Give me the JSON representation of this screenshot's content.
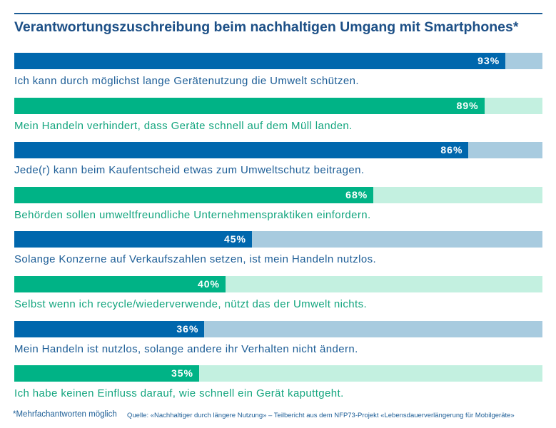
{
  "title": "Verantwortungszuschreibung beim nachhaltigen Umgang mit Smartphones*",
  "footnote": "*Mehrfachantworten möglich",
  "source": "Quelle: «Nachhaltiger durch längere Nutzung» – Teilbericht aus dem NFP73-Projekt «Lebensdauerverlängerung für Mobilgeräte»",
  "colors": {
    "blue": "#0067ad",
    "blue_light": "#a8cbdf",
    "green": "#00b386",
    "green_light": "#c3f0e0",
    "blue_text": "#1c5d96",
    "green_text": "#13a57e"
  },
  "chart_data": {
    "type": "bar",
    "orientation": "horizontal",
    "xlim": [
      0,
      100
    ],
    "unit": "%",
    "categories": [
      "Ich kann durch möglichst lange Gerätenutzung die Umwelt schützen.",
      "Mein Handeln verhindert, dass Geräte schnell auf dem Müll landen.",
      "Jede(r) kann beim Kaufentscheid etwas zum Umweltschutz beitragen.",
      "Behörden sollen umweltfreundliche Unternehmenspraktiken einfordern.",
      "Solange Konzerne auf Verkaufszahlen setzen, ist mein Handeln nutzlos.",
      "Selbst wenn ich recycle/wiederverwende, nützt das der Umwelt nichts.",
      "Mein Handeln ist nutzlos, solange andere ihr Verhalten nicht ändern.",
      "Ich habe keinen Einfluss darauf, wie schnell ein Gerät kaputtgeht."
    ],
    "values": [
      93,
      89,
      86,
      68,
      45,
      40,
      36,
      35
    ],
    "labels": [
      "93%",
      "89%",
      "86%",
      "68%",
      "45%",
      "40%",
      "36%",
      "35%"
    ]
  }
}
